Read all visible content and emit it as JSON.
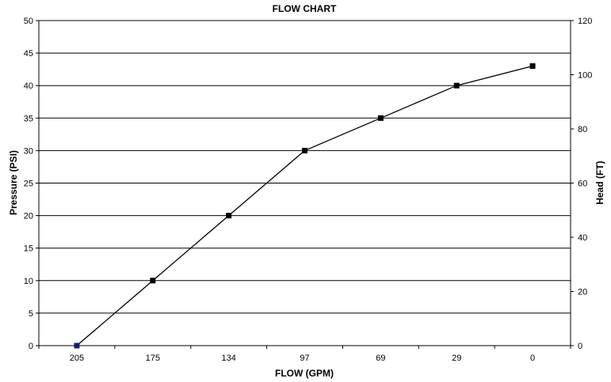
{
  "chart_data": {
    "type": "line",
    "title": "FLOW CHART",
    "xlabel": "FLOW (GPM)",
    "ylabel": "Pressure (PSI)",
    "y2label": "Head (FT)",
    "categories": [
      "205",
      "175",
      "134",
      "97",
      "69",
      "29",
      "0"
    ],
    "values": [
      0,
      10,
      20,
      30,
      35,
      40,
      43
    ],
    "ylim": [
      0,
      50
    ],
    "yticks": [
      "0",
      "5",
      "10",
      "15",
      "20",
      "25",
      "30",
      "35",
      "40",
      "45",
      "50"
    ],
    "y2lim": [
      0,
      120
    ],
    "y2ticks": [
      "0",
      "20",
      "40",
      "60",
      "80",
      "100",
      "120"
    ],
    "grid": true,
    "line_color": "#000000",
    "marker": "square",
    "first_marker_color": "#1a1a6e"
  }
}
